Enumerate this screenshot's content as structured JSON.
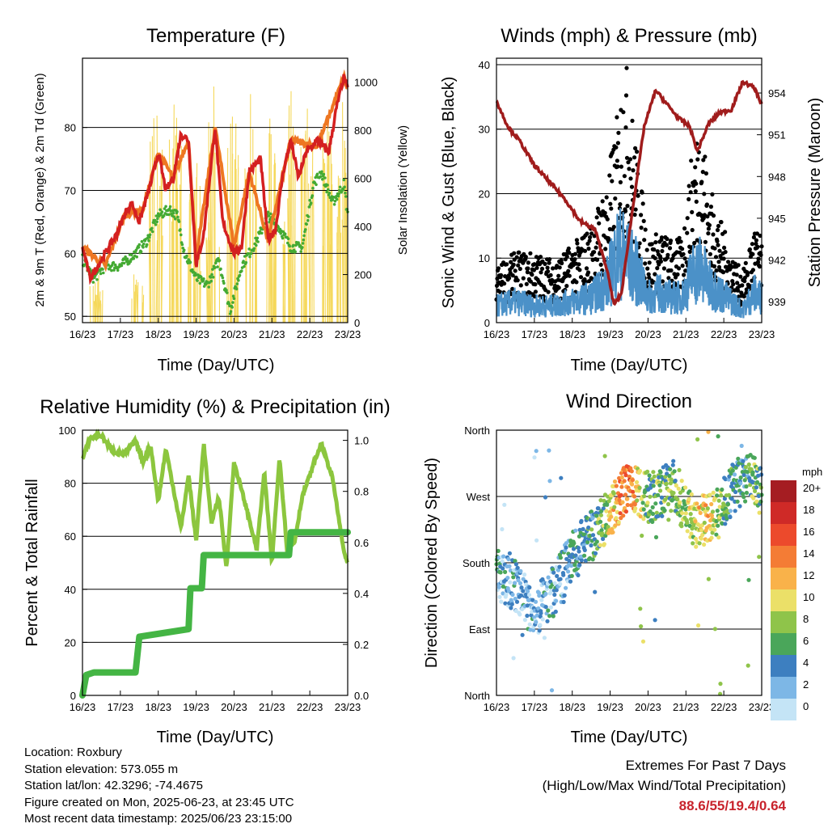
{
  "colors": {
    "temp_2m": "#d42020",
    "temp_9m": "#ee7722",
    "dewpoint": "#44aa33",
    "solar": "#f5d85a",
    "wind": "#4b91c8",
    "gust": "#000000",
    "pressure": "#a01c1c",
    "humidity": "#8cc63e",
    "precip": "#44b544"
  },
  "x_ticks": [
    "16/23",
    "17/23",
    "18/23",
    "19/23",
    "20/23",
    "21/23",
    "22/23",
    "23/23"
  ],
  "xlabel": "Time (Day/UTC)",
  "chart_data": [
    {
      "type": "line",
      "title": "Temperature (F)",
      "xlabel": "Time (Day/UTC)",
      "ylabel": "2m & 9m T (Red, Orange) & 2m Td (Green)",
      "y2label": "Solar Insolation (Yellow)",
      "ylim": [
        49,
        91
      ],
      "y2lim": [
        0,
        1100
      ],
      "y_ticks": [
        50,
        60,
        70,
        80
      ],
      "y2_ticks": [
        0,
        200,
        400,
        600,
        800,
        1000
      ],
      "grid": true,
      "series": [
        {
          "axis": "left",
          "color_key": "dewpoint",
          "x": [
            0,
            0.3,
            0.6,
            1.0,
            1.4,
            1.7,
            2.0,
            2.3,
            2.5,
            2.7,
            3.0,
            3.3,
            3.6,
            3.9,
            4.2,
            4.6,
            4.9,
            5.2,
            5.5,
            5.8,
            6.1,
            6.3,
            6.6,
            6.9,
            7.0
          ],
          "y": [
            59,
            56,
            58,
            58,
            60,
            62,
            66,
            67,
            66,
            60,
            56,
            55,
            59,
            51,
            58,
            62,
            66,
            64,
            61,
            61,
            71,
            73,
            68,
            71,
            66
          ]
        },
        {
          "axis": "left",
          "color_key": "temp_2m",
          "x": [
            0,
            0.2,
            0.6,
            0.9,
            1.1,
            1.3,
            1.5,
            1.8,
            2.0,
            2.2,
            2.4,
            2.6,
            2.8,
            3.0,
            3.2,
            3.5,
            3.7,
            4.0,
            4.2,
            4.4,
            4.7,
            4.9,
            5.1,
            5.3,
            5.5,
            5.7,
            5.9,
            6.2,
            6.5,
            6.7,
            6.9,
            7.0
          ],
          "y": [
            61,
            56,
            60,
            63,
            66,
            68,
            65,
            71,
            76,
            70,
            72,
            79,
            78,
            58,
            63,
            80,
            65,
            60,
            61,
            73,
            75,
            62,
            64,
            73,
            78,
            72,
            76,
            78,
            76,
            83,
            88,
            86
          ]
        },
        {
          "axis": "left",
          "color_key": "temp_9m",
          "x": [
            0,
            0.6,
            1.1,
            1.6,
            2.0,
            2.4,
            2.8,
            3.0,
            3.5,
            4.0,
            4.4,
            4.9,
            5.5,
            6.2,
            6.9,
            7.0
          ],
          "y": [
            61,
            58,
            66,
            67,
            76,
            72,
            78,
            59,
            80,
            61,
            73,
            62,
            78,
            77,
            88,
            86
          ]
        },
        {
          "axis": "right",
          "color_key": "solar",
          "type": "spikes",
          "peaks_x": [
            0.38,
            1.45,
            1.95,
            2.45,
            2.95,
            3.45,
            3.95,
            4.45,
            4.95,
            5.45,
            5.95,
            6.45,
            6.85
          ],
          "peaks_y": [
            220,
            250,
            980,
            1020,
            780,
            1080,
            980,
            1070,
            960,
            1050,
            1000,
            1050,
            980
          ]
        }
      ]
    },
    {
      "type": "scatter",
      "title": "Winds (mph) & Pressure (mb)",
      "xlabel": "Time (Day/UTC)",
      "ylabel": "Sonic Wind & Gust (Blue, Black)",
      "y2label": "Station Pressure (Maroon)",
      "ylim": [
        0,
        41
      ],
      "y2lim": [
        937.5,
        956.5
      ],
      "y_ticks": [
        0,
        10,
        20,
        30,
        40
      ],
      "y2_ticks": [
        939,
        942,
        945,
        948,
        951,
        954
      ],
      "grid": true,
      "series": [
        {
          "name": "",
          "color_key": "gust",
          "envelope_x": [
            0,
            0.5,
            1.0,
            1.5,
            2.0,
            2.5,
            2.9,
            3.2,
            3.4,
            3.7,
            4.0,
            4.3,
            4.6,
            4.9,
            5.2,
            5.4,
            5.6,
            5.9,
            6.2,
            6.5,
            6.8,
            7.0
          ],
          "envelope_y": [
            8,
            10,
            10,
            9,
            11,
            14,
            20,
            30,
            38,
            25,
            12,
            13,
            12,
            12,
            26,
            30,
            20,
            15,
            10,
            7,
            14,
            12
          ]
        },
        {
          "name": "",
          "color_key": "wind",
          "envelope_x": [
            0,
            0.5,
            1.0,
            1.5,
            2.0,
            2.5,
            2.9,
            3.2,
            3.4,
            3.7,
            4.0,
            4.3,
            4.6,
            4.9,
            5.2,
            5.4,
            5.6,
            5.9,
            6.2,
            6.5,
            6.8,
            7.0
          ],
          "envelope_y": [
            4,
            5,
            4,
            4,
            5,
            6,
            9,
            17,
            16,
            12,
            6,
            7,
            6,
            6,
            12,
            13,
            9,
            7,
            5,
            3,
            7,
            6
          ]
        },
        {
          "name": "",
          "axis": "right",
          "color_key": "pressure",
          "x": [
            0,
            0.3,
            0.6,
            1.0,
            1.4,
            1.8,
            2.2,
            2.6,
            2.9,
            3.1,
            3.3,
            3.6,
            3.9,
            4.2,
            4.5,
            4.8,
            5.1,
            5.3,
            5.6,
            5.9,
            6.2,
            6.5,
            6.8,
            7.0
          ],
          "y": [
            953.4,
            951.6,
            950.6,
            948.8,
            947.6,
            946.4,
            944.8,
            944.2,
            941.5,
            938.8,
            939.6,
            945.8,
            951.6,
            954.2,
            953.2,
            952.2,
            951.6,
            949.8,
            951.8,
            952.6,
            952.8,
            954.8,
            954.4,
            953.2
          ]
        }
      ]
    },
    {
      "type": "line",
      "title": "Relative Humidity (%) & Precipitation (in)",
      "xlabel": "Time (Day/UTC)",
      "ylabel": "Percent & Total Rainfall",
      "ylim": [
        0,
        100
      ],
      "y2lim": [
        0,
        1.04
      ],
      "y_ticks": [
        0,
        20,
        40,
        60,
        80,
        100
      ],
      "y2_ticks": [
        "0.0",
        "0.2",
        "0.4",
        "0.6",
        "0.8",
        "1.0"
      ],
      "grid": true,
      "series": [
        {
          "name": "",
          "color_key": "humidity",
          "x": [
            0,
            0.2,
            0.5,
            0.8,
            1.1,
            1.4,
            1.6,
            1.8,
            2.0,
            2.2,
            2.4,
            2.6,
            2.8,
            3.0,
            3.2,
            3.4,
            3.6,
            3.8,
            4.0,
            4.3,
            4.6,
            4.8,
            5.0,
            5.2,
            5.4,
            5.6,
            5.8,
            6.0,
            6.3,
            6.6,
            6.9,
            7.0
          ],
          "y": [
            89,
            97,
            98,
            92,
            91,
            96,
            88,
            94,
            73,
            93,
            78,
            63,
            83,
            58,
            95,
            65,
            75,
            48,
            88,
            72,
            55,
            84,
            50,
            90,
            55,
            58,
            75,
            83,
            95,
            82,
            54,
            50
          ]
        },
        {
          "name": "",
          "color_key": "precip",
          "type": "step",
          "x": [
            0,
            0.1,
            0.3,
            1.4,
            1.5,
            2.8,
            2.85,
            3.15,
            3.2,
            5.45,
            5.5,
            7.0
          ],
          "y": [
            0,
            0.08,
            0.09,
            0.09,
            0.23,
            0.26,
            0.42,
            0.42,
            0.55,
            0.55,
            0.64,
            0.64
          ]
        }
      ]
    },
    {
      "type": "scatter",
      "title": "Wind Direction",
      "xlabel": "Time (Day/UTC)",
      "ylabel": "Direction (Colored By Speed)",
      "ylim": [
        0,
        360
      ],
      "y_ticks": [
        "North",
        "East",
        "South",
        "West",
        "North"
      ],
      "legend": {
        "title": "mph",
        "placement": "right",
        "labels": [
          "20+",
          "18",
          "16",
          "14",
          "12",
          "10",
          "8",
          "6",
          "4",
          "2",
          "0"
        ],
        "colors": [
          "#a51d22",
          "#cf2a27",
          "#ec4a2c",
          "#f47c35",
          "#f9b24a",
          "#ebe068",
          "#8fc44a",
          "#4aa65a",
          "#3d7fc0",
          "#7db7e6",
          "#c4e4f6"
        ]
      },
      "trend_x": [
        0,
        0.5,
        1.0,
        1.5,
        2.0,
        2.5,
        2.9,
        3.2,
        3.5,
        3.8,
        4.1,
        4.4,
        4.7,
        5.0,
        5.3,
        5.6,
        5.9,
        6.2,
        6.5,
        6.8,
        7.0
      ],
      "trend_y": [
        165,
        150,
        110,
        140,
        190,
        215,
        240,
        265,
        285,
        270,
        270,
        275,
        285,
        250,
        235,
        240,
        250,
        280,
        295,
        295,
        275
      ],
      "speed_trend": [
        3,
        3,
        2,
        3,
        4,
        5,
        8,
        12,
        15,
        9,
        6,
        7,
        7,
        8,
        10,
        11,
        7,
        5,
        4,
        7,
        6
      ]
    }
  ],
  "info": {
    "location": "Location: Roxbury",
    "elevation": "Station elevation: 573.055 m",
    "latlon": "Station lat/lon: 42.3296; -74.4675",
    "created": "Figure created on Mon, 2025-06-23, at 23:45 UTC",
    "recent": "Most recent data timestamp: 2025/06/23 23:15:00"
  },
  "extremes": {
    "line1": "Extremes For Past 7 Days",
    "line2": "(High/Low/Max Wind/Total Precipitation)",
    "values": "88.6/55/19.4/0.64"
  }
}
